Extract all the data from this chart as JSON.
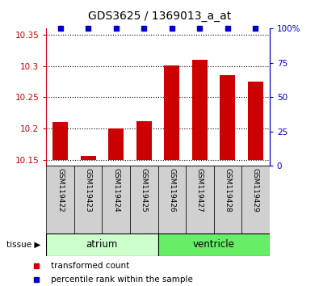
{
  "title": "GDS3625 / 1369013_a_at",
  "samples": [
    "GSM119422",
    "GSM119423",
    "GSM119424",
    "GSM119425",
    "GSM119426",
    "GSM119427",
    "GSM119428",
    "GSM119429"
  ],
  "bar_values": [
    10.21,
    10.156,
    10.2,
    10.212,
    10.301,
    10.31,
    10.286,
    10.275
  ],
  "percentile_values": [
    100,
    100,
    100,
    100,
    100,
    100,
    100,
    100
  ],
  "bar_color": "#cc0000",
  "dot_color": "#0000cc",
  "ylim_left": [
    10.14,
    10.36
  ],
  "ylim_right": [
    0,
    100
  ],
  "yticks_left": [
    10.15,
    10.2,
    10.25,
    10.3,
    10.35
  ],
  "yticks_right": [
    0,
    25,
    50,
    75,
    100
  ],
  "ytick_labels_left": [
    "10.15",
    "10.2",
    "10.25",
    "10.3",
    "10.35"
  ],
  "ytick_labels_right": [
    "0",
    "25",
    "50",
    "75",
    "100%"
  ],
  "tissue_groups": [
    {
      "label": "atrium",
      "start": 0,
      "end": 3,
      "color": "#ccffcc"
    },
    {
      "label": "ventricle",
      "start": 4,
      "end": 7,
      "color": "#66ee66"
    }
  ],
  "tissue_label": "tissue ▶",
  "legend_bar_label": "transformed count",
  "legend_dot_label": "percentile rank within the sample",
  "bg_color": "#ffffff",
  "plot_bg_color": "#ffffff",
  "baseline": 10.15,
  "bar_width": 0.55
}
